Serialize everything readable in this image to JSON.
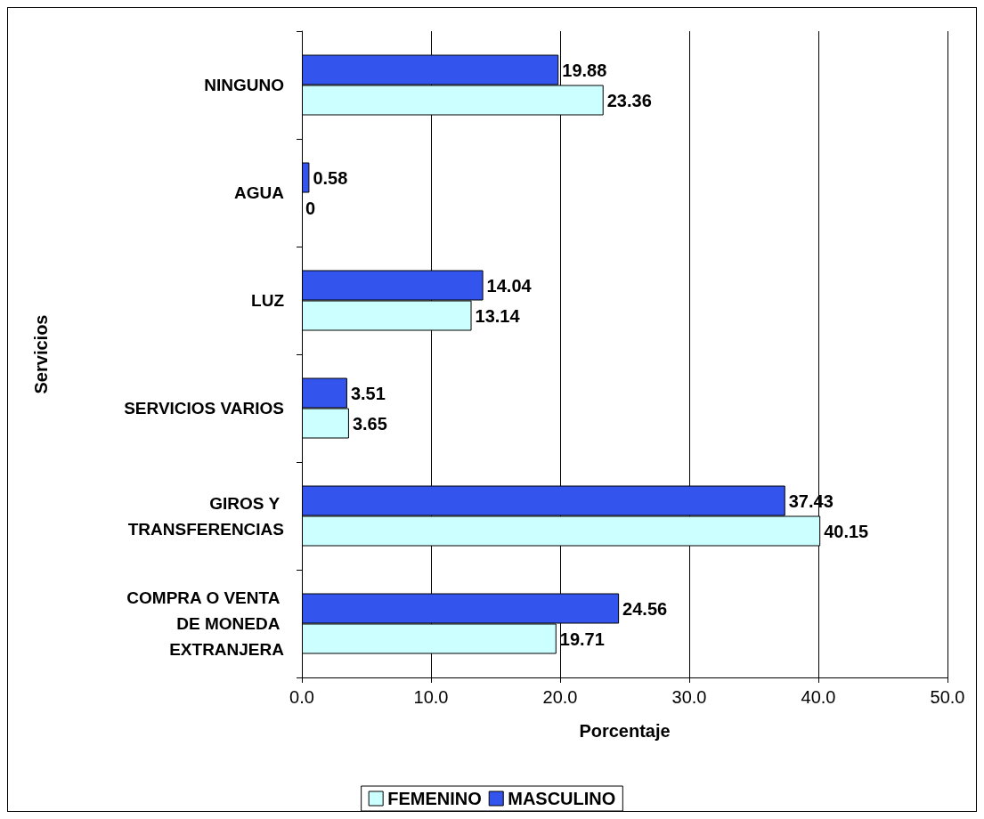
{
  "chart_data": {
    "type": "bar",
    "orientation": "horizontal",
    "xlabel": "Porcentaje",
    "ylabel": "Servicios",
    "categories": [
      "NINGUNO",
      "AGUA",
      "LUZ",
      "SERVICIOS VARIOS",
      "GIROS Y TRANSFERENCIAS",
      "COMPRA O VENTA DE MONEDA EXTRANJERA"
    ],
    "series": [
      {
        "name": "MASCULINO",
        "color": "#3355ee",
        "values": [
          19.88,
          0.58,
          14.04,
          3.51,
          37.43,
          24.56
        ]
      },
      {
        "name": "FEMENINO",
        "color": "#ccffff",
        "values": [
          23.36,
          0,
          13.14,
          3.65,
          40.15,
          19.71
        ]
      }
    ],
    "xlim": [
      0,
      50
    ],
    "xticks": [
      {
        "value": 0,
        "label": "0.0"
      },
      {
        "value": 10,
        "label": "10.0"
      },
      {
        "value": 20,
        "label": "20.0"
      },
      {
        "value": 30,
        "label": "30.0"
      },
      {
        "value": 40,
        "label": "40.0"
      },
      {
        "value": 50,
        "label": "50.0"
      }
    ],
    "grid": "x",
    "legend": "bottom",
    "data_labels": true
  }
}
